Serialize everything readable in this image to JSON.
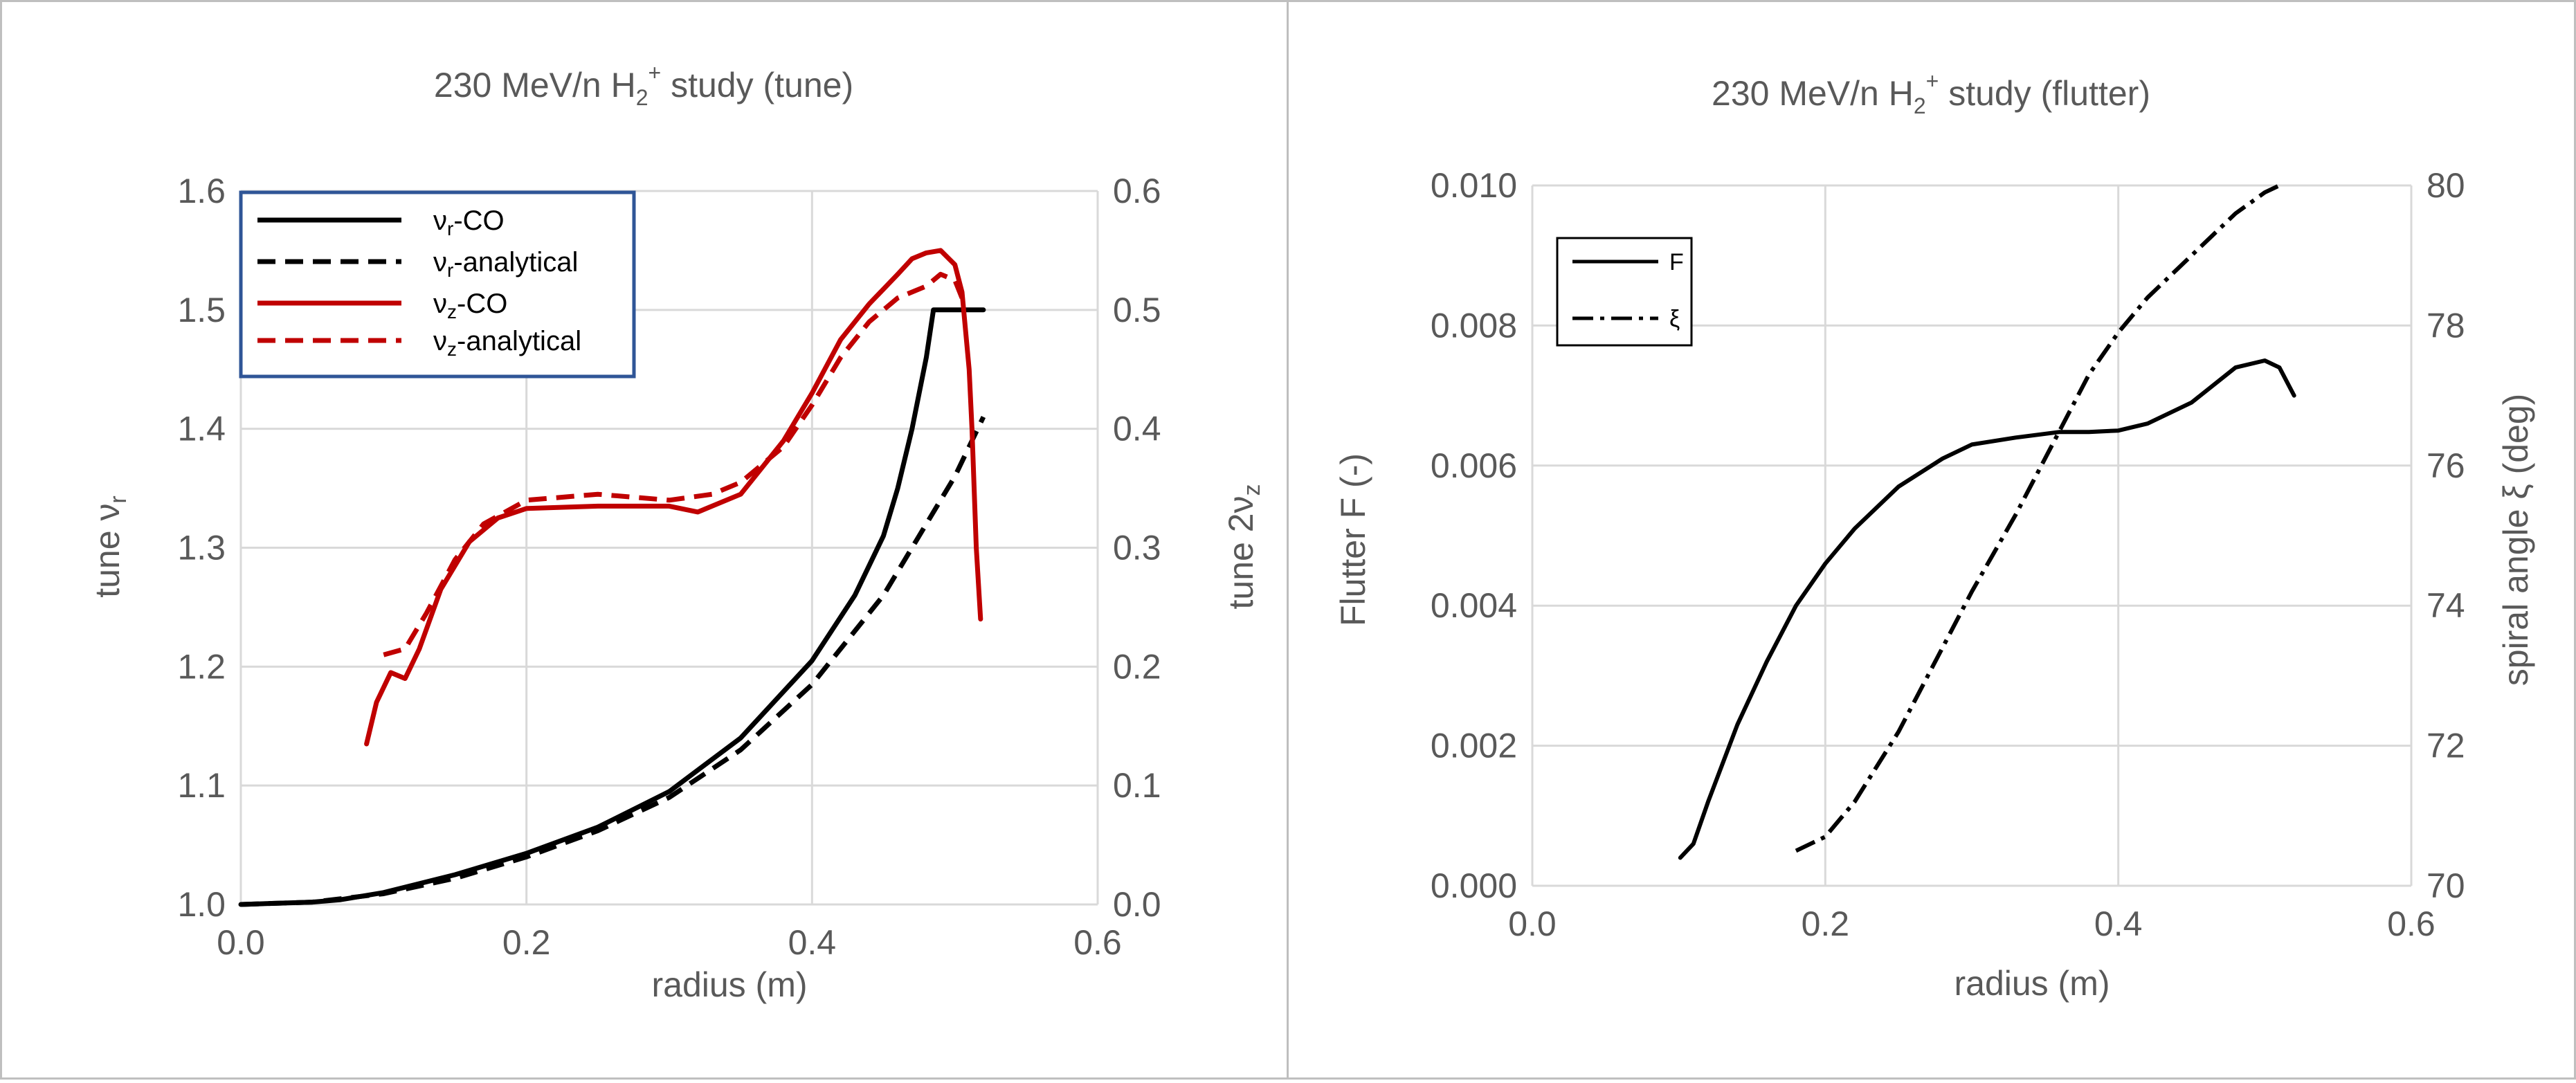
{
  "colors": {
    "black": "#000000",
    "red": "#c00000",
    "legend_border": "#2f5597",
    "text": "#595959",
    "grid": "#d9d9d9"
  },
  "chart_data": [
    {
      "type": "line",
      "title": "230 MeV/n H2+ study (tune)",
      "title_parts": [
        "230 MeV/n H",
        "2",
        "+",
        " study (tune)"
      ],
      "xlabel": "radius (m)",
      "ylabel": "tune νr",
      "ylabel_parts": [
        "tune ν",
        "r"
      ],
      "y2label": "tune 2νz",
      "y2label_parts": [
        "tune 2ν",
        "z"
      ],
      "xlim": [
        0.0,
        0.6
      ],
      "ylim": [
        1.0,
        1.6
      ],
      "y2lim": [
        0.0,
        0.6
      ],
      "x_ticks": [
        "0.0",
        "0.2",
        "0.4",
        "0.6"
      ],
      "y_ticks": [
        "1.0",
        "1.1",
        "1.2",
        "1.3",
        "1.4",
        "1.5",
        "1.6"
      ],
      "y2_ticks": [
        "0.0",
        "0.1",
        "0.2",
        "0.3",
        "0.4",
        "0.5",
        "0.6"
      ],
      "grid": true,
      "legend_position": "top-left",
      "series": [
        {
          "name": "νr-CO",
          "base": "ν",
          "sub": "r",
          "suffix": "-CO",
          "axis": "left",
          "color": "#000000",
          "style": "solid",
          "x": [
            0.0,
            0.05,
            0.07,
            0.1,
            0.15,
            0.2,
            0.25,
            0.3,
            0.35,
            0.4,
            0.43,
            0.45,
            0.46,
            0.47,
            0.475,
            0.48,
            0.485,
            0.52
          ],
          "y": [
            1.0,
            1.002,
            1.004,
            1.01,
            1.025,
            1.043,
            1.065,
            1.095,
            1.14,
            1.205,
            1.26,
            1.31,
            1.35,
            1.4,
            1.43,
            1.46,
            1.5,
            1.5
          ]
        },
        {
          "name": "νr-analytical",
          "base": "ν",
          "sub": "r",
          "suffix": "-analytical",
          "axis": "left",
          "color": "#000000",
          "style": "dashed",
          "x": [
            0.0,
            0.05,
            0.1,
            0.15,
            0.2,
            0.25,
            0.3,
            0.35,
            0.4,
            0.45,
            0.5,
            0.52
          ],
          "y": [
            1.0,
            1.002,
            1.009,
            1.022,
            1.04,
            1.062,
            1.09,
            1.13,
            1.185,
            1.26,
            1.36,
            1.41
          ]
        },
        {
          "name": "νz-CO",
          "base": "ν",
          "sub": "z",
          "suffix": "-CO",
          "axis": "right",
          "color": "#c00000",
          "style": "solid",
          "x": [
            0.088,
            0.095,
            0.105,
            0.115,
            0.125,
            0.14,
            0.16,
            0.18,
            0.2,
            0.25,
            0.3,
            0.32,
            0.35,
            0.38,
            0.4,
            0.42,
            0.44,
            0.46,
            0.47,
            0.48,
            0.49,
            0.5,
            0.505,
            0.51,
            0.512,
            0.515,
            0.518
          ],
          "y": [
            0.135,
            0.17,
            0.195,
            0.19,
            0.215,
            0.265,
            0.305,
            0.325,
            0.333,
            0.335,
            0.335,
            0.33,
            0.345,
            0.39,
            0.43,
            0.475,
            0.505,
            0.53,
            0.543,
            0.548,
            0.55,
            0.538,
            0.515,
            0.45,
            0.4,
            0.3,
            0.24
          ]
        },
        {
          "name": "νz-analytical",
          "base": "ν",
          "sub": "z",
          "suffix": "-analytical",
          "axis": "right",
          "color": "#c00000",
          "style": "dashed",
          "x": [
            0.1,
            0.115,
            0.13,
            0.15,
            0.17,
            0.2,
            0.25,
            0.3,
            0.33,
            0.35,
            0.38,
            0.4,
            0.42,
            0.44,
            0.46,
            0.48,
            0.49,
            0.5,
            0.505
          ],
          "y": [
            0.21,
            0.215,
            0.245,
            0.29,
            0.32,
            0.34,
            0.345,
            0.34,
            0.345,
            0.355,
            0.385,
            0.42,
            0.46,
            0.49,
            0.51,
            0.52,
            0.53,
            0.525,
            0.51
          ]
        }
      ]
    },
    {
      "type": "line",
      "title": "230 MeV/n H2+ study (flutter)",
      "title_parts": [
        "230 MeV/n H",
        "2",
        "+",
        " study (flutter)"
      ],
      "xlabel": "radius (m)",
      "ylabel": "Flutter F (-)",
      "y2label": "spiral angle ξ (deg)",
      "xlim": [
        0.0,
        0.6
      ],
      "ylim": [
        0.0,
        0.01
      ],
      "y2lim": [
        70,
        80
      ],
      "x_ticks": [
        "0.0",
        "0.2",
        "0.4",
        "0.6"
      ],
      "y_ticks": [
        "0.000",
        "0.002",
        "0.004",
        "0.006",
        "0.008",
        "0.010"
      ],
      "y2_ticks": [
        "70",
        "72",
        "74",
        "76",
        "78",
        "80"
      ],
      "grid": true,
      "legend_position": "top-left",
      "series": [
        {
          "name": "F",
          "axis": "left",
          "color": "#000000",
          "style": "solid",
          "x": [
            0.101,
            0.11,
            0.12,
            0.14,
            0.16,
            0.18,
            0.2,
            0.22,
            0.25,
            0.28,
            0.3,
            0.33,
            0.36,
            0.38,
            0.4,
            0.42,
            0.45,
            0.48,
            0.5,
            0.51,
            0.515,
            0.52
          ],
          "y": [
            0.0004,
            0.0006,
            0.0012,
            0.0023,
            0.0032,
            0.004,
            0.0046,
            0.0051,
            0.0057,
            0.0061,
            0.0063,
            0.0064,
            0.00648,
            0.00648,
            0.0065,
            0.0066,
            0.0069,
            0.0074,
            0.0075,
            0.0074,
            0.0072,
            0.007
          ]
        },
        {
          "name": "ξ",
          "axis": "right",
          "color": "#000000",
          "style": "dash-dot",
          "x": [
            0.18,
            0.2,
            0.22,
            0.25,
            0.28,
            0.3,
            0.33,
            0.36,
            0.38,
            0.4,
            0.42,
            0.45,
            0.48,
            0.5,
            0.51
          ],
          "y": [
            70.5,
            70.7,
            71.2,
            72.2,
            73.4,
            74.2,
            75.3,
            76.5,
            77.3,
            77.9,
            78.4,
            79.0,
            79.6,
            79.9,
            80.0
          ]
        }
      ]
    }
  ]
}
